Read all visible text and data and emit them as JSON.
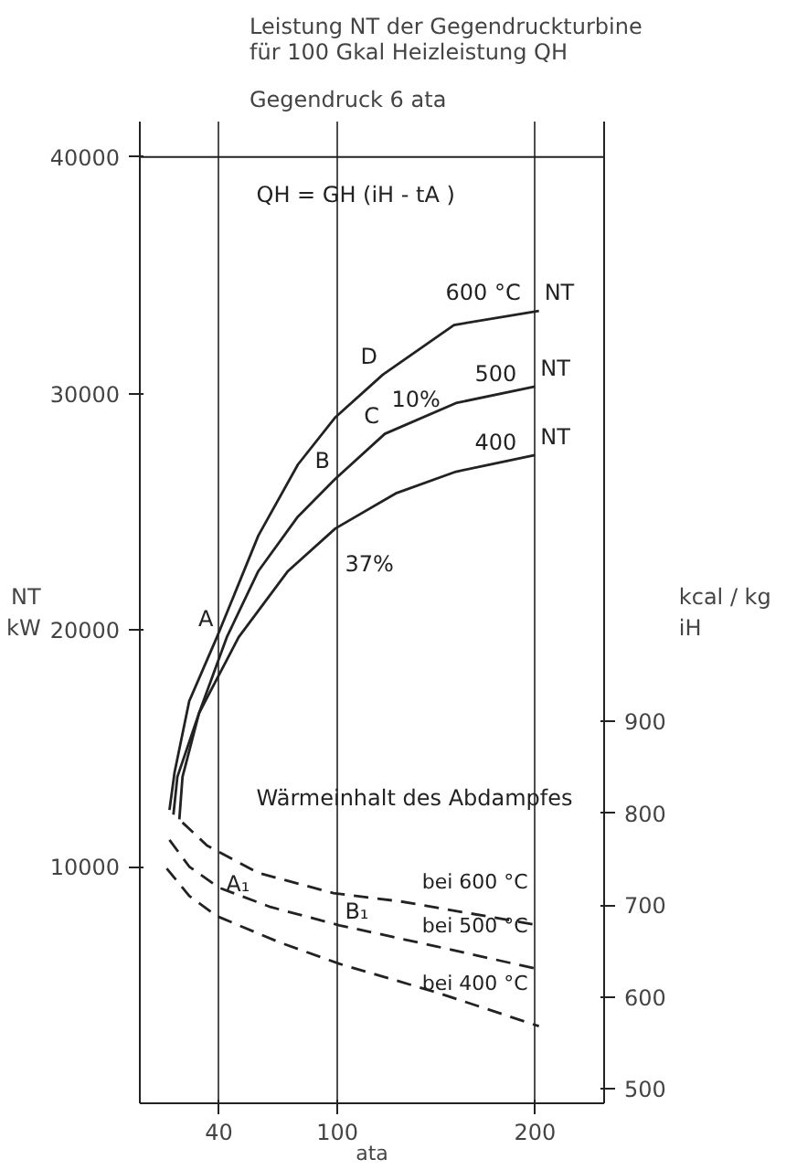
{
  "chart_data": {
    "type": "line",
    "title": "Leistung NT der Gegendruckturbine\nfür 100 Gkal Heizleistung QH",
    "subtitle": "Gegendruck 6 ata",
    "ylabel": "NT\nkW",
    "y2label": "kcal / kg\niH",
    "xlabel": "ata",
    "xlim": [
      0,
      235
    ],
    "xticks": [
      40,
      100,
      200
    ],
    "ylim": [
      0,
      41500
    ],
    "yticks": [
      10000,
      20000,
      30000,
      40000
    ],
    "y2lim": [
      484,
      1554
    ],
    "y2ticks": [
      500,
      600,
      700,
      800,
      900
    ],
    "grid": "x",
    "marker": "none",
    "ref_lines": [
      {
        "axis": "y",
        "value": 40000,
        "label": null
      }
    ],
    "series": [
      {
        "name": "600 °C",
        "color": "#222222",
        "line_style": "solid",
        "x": [
          15,
          17.6,
          25,
          39,
          60,
          80,
          99,
          123,
          159,
          202
        ],
        "values": [
          12400,
          14000,
          17000,
          19700,
          24000,
          27000,
          29000,
          30800,
          32900,
          33500
        ]
      },
      {
        "name": "500",
        "color": "#222222",
        "line_style": "solid",
        "x": [
          17,
          19,
          30,
          44,
          60,
          80,
          99,
          124,
          160,
          200
        ],
        "values": [
          12200,
          13800,
          16500,
          19700,
          22500,
          24800,
          26400,
          28300,
          29600,
          30300
        ]
      },
      {
        "name": "400",
        "color": "#222222",
        "line_style": "solid",
        "x": [
          20,
          21.6,
          30,
          50,
          75,
          99,
          130,
          160,
          200
        ],
        "values": [
          12000,
          13800,
          16500,
          19700,
          22500,
          24300,
          25800,
          26700,
          27400
        ]
      },
      {
        "name": "bei 600 °C",
        "color": "#222222",
        "line_style": "dashed",
        "axis": "y2",
        "x": [
          21.6,
          34,
          60,
          98,
          132,
          202
        ],
        "values": [
          790,
          765,
          735,
          713,
          704,
          678
        ]
      },
      {
        "name": "bei 500 °C",
        "color": "#222222",
        "line_style": "dashed",
        "axis": "y2",
        "x": [
          15,
          25,
          40,
          66,
          101,
          150,
          202
        ],
        "values": [
          771,
          742,
          719,
          698,
          678,
          655,
          630
        ]
      },
      {
        "name": "bei 400 °C",
        "color": "#222222",
        "line_style": "dashed",
        "axis": "y2",
        "x": [
          13.6,
          25,
          39,
          70,
          101,
          150,
          202
        ],
        "values": [
          740,
          710,
          688,
          660,
          636,
          605,
          568
        ]
      }
    ],
    "annotations": [
      "QH = GH (iH - tA )",
      "Wärmeinhalt des Abdampfes",
      {
        "text": "A",
        "x": 40,
        "y": 19700
      },
      {
        "text": "B",
        "x": 99,
        "y": 26400
      },
      {
        "text": "C",
        "x": 124,
        "y": 28300
      },
      {
        "text": "D",
        "x": 123,
        "y": 30800
      },
      "10%",
      "37%",
      {
        "text": "NT",
        "x": 202,
        "y": 33500
      },
      {
        "text": "NT",
        "x": 200,
        "y": 30300
      },
      {
        "text": "NT",
        "x": 200,
        "y": 27400
      },
      "A₁",
      "B₁"
    ]
  }
}
